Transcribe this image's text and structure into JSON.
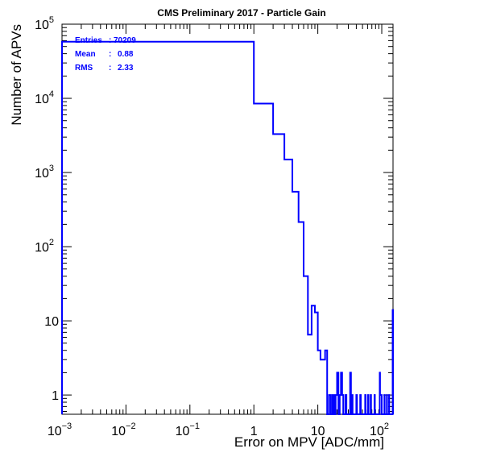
{
  "chart_data": {
    "type": "histogram",
    "title": "CMS Preliminary 2017  -  Particle Gain",
    "xlabel": "Error on MPV [ADC/mm]",
    "ylabel": "Number of APVs",
    "x_scale": "log",
    "y_scale": "log",
    "xlim": [
      0.001,
      150
    ],
    "ylim": [
      0.55,
      100000
    ],
    "x_ticks": [
      {
        "value": 0.001,
        "base": "10",
        "exp": "−3"
      },
      {
        "value": 0.01,
        "base": "10",
        "exp": "−2"
      },
      {
        "value": 0.1,
        "base": "10",
        "exp": "−1"
      },
      {
        "value": 1,
        "base": "1",
        "exp": ""
      },
      {
        "value": 10,
        "base": "10",
        "exp": ""
      },
      {
        "value": 100,
        "base": "10",
        "exp": "2"
      }
    ],
    "y_ticks": [
      {
        "value": 1,
        "base": "1",
        "exp": ""
      },
      {
        "value": 10,
        "base": "10",
        "exp": ""
      },
      {
        "value": 100,
        "base": "10",
        "exp": "2"
      },
      {
        "value": 1000,
        "base": "10",
        "exp": "3"
      },
      {
        "value": 10000,
        "base": "10",
        "exp": "4"
      },
      {
        "value": 100000,
        "base": "10",
        "exp": "5"
      }
    ],
    "line_color": "#0000ff",
    "stats": {
      "entries": "70209",
      "mean": "0.88",
      "rms": "2.33"
    },
    "bins": [
      {
        "x0": 0.001,
        "x1": 1,
        "y": 58000
      },
      {
        "x0": 1,
        "x1": 2,
        "y": 8500
      },
      {
        "x0": 2,
        "x1": 3,
        "y": 3300
      },
      {
        "x0": 3,
        "x1": 4,
        "y": 1500
      },
      {
        "x0": 4,
        "x1": 5,
        "y": 550
      },
      {
        "x0": 5,
        "x1": 6,
        "y": 215
      },
      {
        "x0": 6,
        "x1": 7,
        "y": 40
      },
      {
        "x0": 7,
        "x1": 8,
        "y": 6.5
      },
      {
        "x0": 8,
        "x1": 9,
        "y": 16
      },
      {
        "x0": 9,
        "x1": 10,
        "y": 13
      },
      {
        "x0": 10,
        "x1": 11,
        "y": 4
      },
      {
        "x0": 11,
        "x1": 12,
        "y": 3
      },
      {
        "x0": 12,
        "x1": 13,
        "y": 3
      },
      {
        "x0": 13,
        "x1": 14,
        "y": 4
      },
      {
        "x0": 14,
        "x1": 15,
        "y": 0
      },
      {
        "x0": 15,
        "x1": 16,
        "y": 1
      },
      {
        "x0": 16,
        "x1": 17,
        "y": 0
      },
      {
        "x0": 17,
        "x1": 18,
        "y": 1
      },
      {
        "x0": 18,
        "x1": 19,
        "y": 0
      },
      {
        "x0": 19,
        "x1": 20,
        "y": 1
      },
      {
        "x0": 20,
        "x1": 21,
        "y": 2
      },
      {
        "x0": 21,
        "x1": 22,
        "y": 0
      },
      {
        "x0": 22,
        "x1": 23,
        "y": 1
      },
      {
        "x0": 23,
        "x1": 24,
        "y": 2
      },
      {
        "x0": 24,
        "x1": 25,
        "y": 1
      },
      {
        "x0": 25,
        "x1": 27,
        "y": 0
      },
      {
        "x0": 27,
        "x1": 28,
        "y": 1
      },
      {
        "x0": 28,
        "x1": 32,
        "y": 0
      },
      {
        "x0": 32,
        "x1": 33,
        "y": 2
      },
      {
        "x0": 33,
        "x1": 34,
        "y": 0
      },
      {
        "x0": 34,
        "x1": 35,
        "y": 1
      },
      {
        "x0": 35,
        "x1": 40,
        "y": 0
      },
      {
        "x0": 40,
        "x1": 41,
        "y": 1
      },
      {
        "x0": 41,
        "x1": 46,
        "y": 0
      },
      {
        "x0": 46,
        "x1": 47,
        "y": 1
      },
      {
        "x0": 47,
        "x1": 55,
        "y": 0
      },
      {
        "x0": 55,
        "x1": 56,
        "y": 1
      },
      {
        "x0": 56,
        "x1": 61,
        "y": 0
      },
      {
        "x0": 61,
        "x1": 62,
        "y": 1
      },
      {
        "x0": 62,
        "x1": 67,
        "y": 0
      },
      {
        "x0": 67,
        "x1": 68,
        "y": 1
      },
      {
        "x0": 68,
        "x1": 77,
        "y": 0
      },
      {
        "x0": 77,
        "x1": 78,
        "y": 1
      },
      {
        "x0": 78,
        "x1": 93,
        "y": 0
      },
      {
        "x0": 93,
        "x1": 94,
        "y": 2
      },
      {
        "x0": 94,
        "x1": 100,
        "y": 1
      },
      {
        "x0": 100,
        "x1": 110,
        "y": 0
      },
      {
        "x0": 110,
        "x1": 111,
        "y": 1
      },
      {
        "x0": 111,
        "x1": 120,
        "y": 0
      },
      {
        "x0": 120,
        "x1": 121,
        "y": 1
      },
      {
        "x0": 121,
        "x1": 130,
        "y": 0
      },
      {
        "x0": 130,
        "x1": 131,
        "y": 1
      },
      {
        "x0": 131,
        "x1": 148,
        "y": 0
      },
      {
        "x0": 148,
        "x1": 150,
        "y": 14
      }
    ]
  }
}
